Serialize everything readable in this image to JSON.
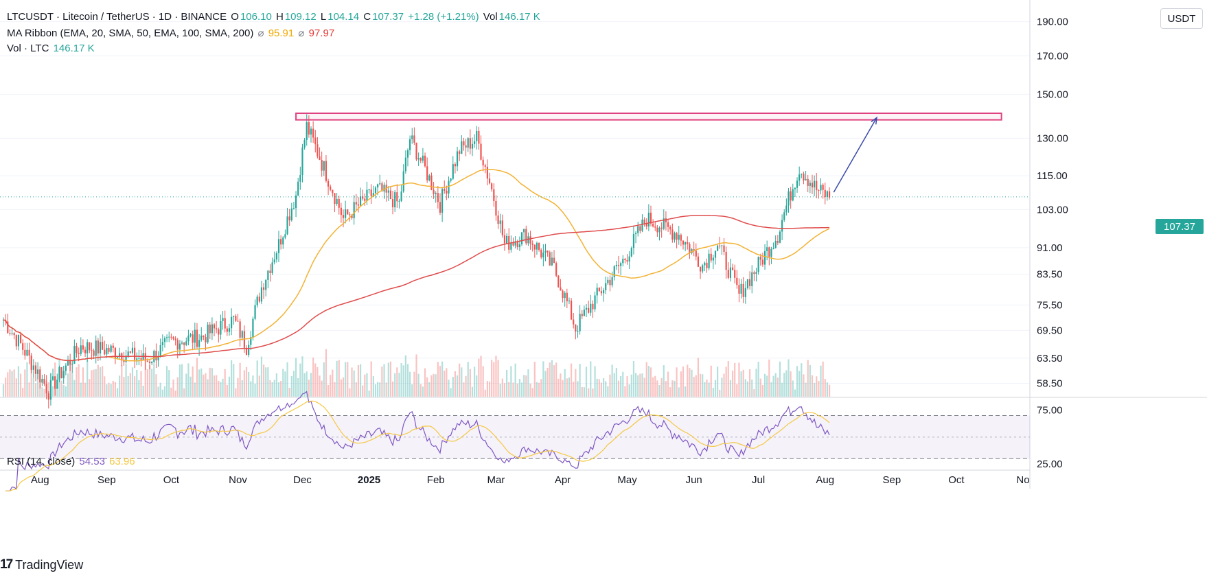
{
  "header": {
    "symbol": "LTCUSDT · Litecoin / TetherUS · 1D · BINANCE",
    "o_label": "O",
    "o_value": "106.10",
    "h_label": "H",
    "h_value": "109.12",
    "l_label": "L",
    "l_value": "104.14",
    "c_label": "C",
    "c_value": "107.37",
    "change": "+1.28 (+1.21%)",
    "vol_label": "Vol",
    "vol_value": "146.17 K"
  },
  "ma_ribbon": {
    "label": "MA Ribbon (EMA, 20, SMA, 50, EMA, 100, SMA, 200)",
    "value1": "95.91",
    "value2": "97.97",
    "symbol": "⌀"
  },
  "volume": {
    "label": "Vol · LTC",
    "value": "146.17 K"
  },
  "rsi": {
    "label": "RSI (14, close)",
    "value1": "54.53",
    "value2": "63.96"
  },
  "currency": "USDT",
  "last_price": "107.37",
  "logo_text": "TradingView",
  "colors": {
    "up": "#26a69a",
    "down": "#ef5350",
    "sma50": "#f2b233",
    "sma200": "#e04c4c",
    "resistance": "#e0427f",
    "arrow": "#3949ab",
    "rsi": "#7e57c2",
    "rsi_ma": "#f5c842"
  },
  "chart_data": {
    "type": "candlestick",
    "title": "LTCUSDT · Litecoin / TetherUS · 1D · BINANCE",
    "y_axis": {
      "ticks": [
        "190.00",
        "170.00",
        "150.00",
        "130.00",
        "115.00",
        "103.00",
        "91.00",
        "83.50",
        "75.50",
        "69.50",
        "63.50",
        "58.50"
      ],
      "range": [
        56,
        195
      ],
      "scale": "log"
    },
    "x_axis": {
      "ticks": [
        "Aug",
        "Sep",
        "Oct",
        "Nov",
        "Dec",
        "2025",
        "Feb",
        "Mar",
        "Apr",
        "May",
        "Jun",
        "Jul",
        "Aug",
        "Sep",
        "Oct",
        "No"
      ]
    },
    "price_series": [
      {
        "date": "2024-07-15",
        "close": 72
      },
      {
        "date": "2024-08-05",
        "close": 57
      },
      {
        "date": "2024-08-20",
        "close": 66
      },
      {
        "date": "2024-09-05",
        "close": 65
      },
      {
        "date": "2024-09-20",
        "close": 63
      },
      {
        "date": "2024-10-01",
        "close": 67
      },
      {
        "date": "2024-10-15",
        "close": 68
      },
      {
        "date": "2024-10-30",
        "close": 72
      },
      {
        "date": "2024-11-05",
        "close": 66
      },
      {
        "date": "2024-11-12",
        "close": 80
      },
      {
        "date": "2024-11-20",
        "close": 92
      },
      {
        "date": "2024-11-28",
        "close": 108
      },
      {
        "date": "2024-12-03",
        "close": 135
      },
      {
        "date": "2024-12-10",
        "close": 120
      },
      {
        "date": "2024-12-20",
        "close": 100
      },
      {
        "date": "2025-01-05",
        "close": 110
      },
      {
        "date": "2025-01-15",
        "close": 105
      },
      {
        "date": "2025-01-20",
        "close": 130
      },
      {
        "date": "2025-02-03",
        "close": 105
      },
      {
        "date": "2025-02-12",
        "close": 125
      },
      {
        "date": "2025-02-20",
        "close": 130
      },
      {
        "date": "2025-02-27",
        "close": 110
      },
      {
        "date": "2025-03-05",
        "close": 92
      },
      {
        "date": "2025-03-15",
        "close": 95
      },
      {
        "date": "2025-03-28",
        "close": 85
      },
      {
        "date": "2025-04-07",
        "close": 70
      },
      {
        "date": "2025-04-20",
        "close": 80
      },
      {
        "date": "2025-04-30",
        "close": 88
      },
      {
        "date": "2025-05-10",
        "close": 100
      },
      {
        "date": "2025-05-25",
        "close": 95
      },
      {
        "date": "2025-06-05",
        "close": 86
      },
      {
        "date": "2025-06-12",
        "close": 92
      },
      {
        "date": "2025-06-22",
        "close": 78
      },
      {
        "date": "2025-07-01",
        "close": 86
      },
      {
        "date": "2025-07-10",
        "close": 95
      },
      {
        "date": "2025-07-20",
        "close": 118
      },
      {
        "date": "2025-07-28",
        "close": 110
      },
      {
        "date": "2025-08-03",
        "close": 107.37
      }
    ],
    "resistance_zone": {
      "low": 138,
      "high": 141,
      "start": "2024-11-28",
      "end": "2025-10-22"
    },
    "projection_arrow": {
      "from_date": "2025-08-05",
      "from_price": 109,
      "to_date": "2025-08-25",
      "to_price": 139
    },
    "indicators": [
      "SMA 50",
      "SMA 200",
      "Volume",
      "RSI (14, close)"
    ],
    "rsi": {
      "ticks": [
        "75.00",
        "25.00"
      ],
      "levels": [
        70,
        30
      ],
      "range": [
        20,
        85
      ]
    }
  }
}
